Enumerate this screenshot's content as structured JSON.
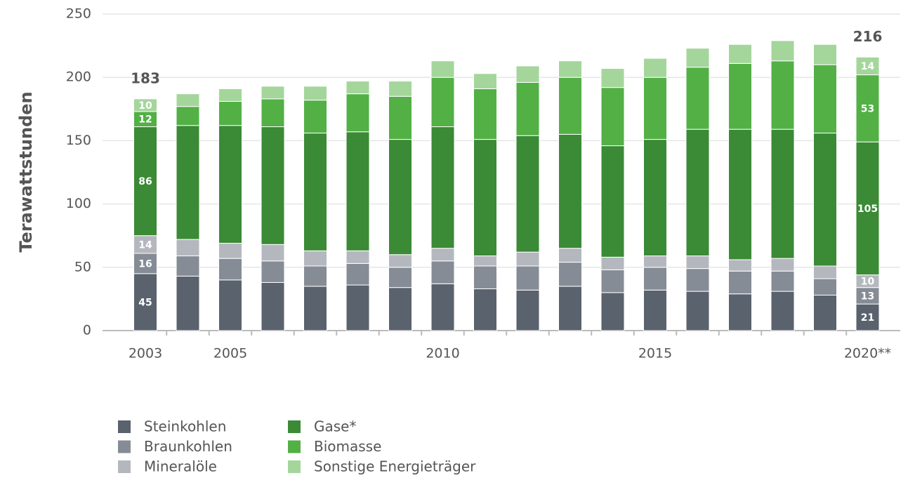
{
  "chart_data": {
    "type": "stacked_bar",
    "y_label": "Terawattstunden",
    "categories": [
      "2003",
      null,
      "2005",
      null,
      null,
      null,
      null,
      "2010",
      null,
      null,
      null,
      null,
      "2015",
      null,
      null,
      null,
      null,
      "2020**"
    ],
    "series": [
      {
        "name": "Steinkohlen",
        "color": "#5a626d",
        "values": [
          45,
          43,
          40,
          38,
          35,
          36,
          34,
          37,
          33,
          32,
          35,
          30,
          32,
          31,
          29,
          31,
          28,
          21
        ],
        "value_labels": [
          "45",
          null,
          null,
          null,
          null,
          null,
          null,
          null,
          null,
          null,
          null,
          null,
          null,
          null,
          null,
          null,
          null,
          "21"
        ]
      },
      {
        "name": "Braunkohlen",
        "color": "#868c95",
        "values": [
          16,
          16,
          17,
          17,
          16,
          17,
          16,
          18,
          18,
          19,
          19,
          18,
          18,
          18,
          18,
          16,
          13,
          13
        ],
        "value_labels": [
          "16",
          null,
          null,
          null,
          null,
          null,
          null,
          null,
          null,
          null,
          null,
          null,
          null,
          null,
          null,
          null,
          null,
          "13"
        ]
      },
      {
        "name": "Mineralöle",
        "color": "#b4b8be",
        "values": [
          14,
          13,
          12,
          13,
          12,
          10,
          10,
          10,
          8,
          11,
          11,
          10,
          9,
          10,
          9,
          10,
          10,
          10
        ],
        "value_labels": [
          "14",
          null,
          null,
          null,
          null,
          null,
          null,
          null,
          null,
          null,
          null,
          null,
          null,
          null,
          null,
          null,
          null,
          "10"
        ]
      },
      {
        "name": "Gase*",
        "color": "#3b8a36",
        "values": [
          86,
          90,
          93,
          93,
          93,
          94,
          91,
          96,
          92,
          92,
          90,
          88,
          92,
          100,
          103,
          102,
          105,
          105
        ],
        "value_labels": [
          "86",
          null,
          null,
          null,
          null,
          null,
          null,
          null,
          null,
          null,
          null,
          null,
          null,
          null,
          null,
          null,
          null,
          "105"
        ]
      },
      {
        "name": "Biomasse",
        "color": "#52b045",
        "values": [
          12,
          15,
          19,
          22,
          26,
          30,
          34,
          39,
          40,
          42,
          45,
          46,
          49,
          49,
          52,
          54,
          54,
          53
        ],
        "value_labels": [
          "12",
          null,
          null,
          null,
          null,
          null,
          null,
          null,
          null,
          null,
          null,
          null,
          null,
          null,
          null,
          null,
          null,
          "53"
        ]
      },
      {
        "name": "Sonstige Energieträger",
        "color": "#a4d69b",
        "values": [
          10,
          10,
          10,
          10,
          11,
          10,
          12,
          13,
          12,
          13,
          13,
          15,
          15,
          15,
          15,
          16,
          16,
          14
        ],
        "value_labels": [
          "10",
          null,
          null,
          null,
          null,
          null,
          null,
          null,
          null,
          null,
          null,
          null,
          null,
          null,
          null,
          null,
          null,
          "14"
        ]
      }
    ],
    "totals": [
      183,
      null,
      null,
      null,
      null,
      null,
      null,
      null,
      null,
      null,
      null,
      null,
      null,
      null,
      null,
      null,
      null,
      216
    ],
    "ylim": [
      0,
      250
    ],
    "yticks": [
      0,
      50,
      100,
      150,
      200,
      250
    ],
    "grid": true
  }
}
